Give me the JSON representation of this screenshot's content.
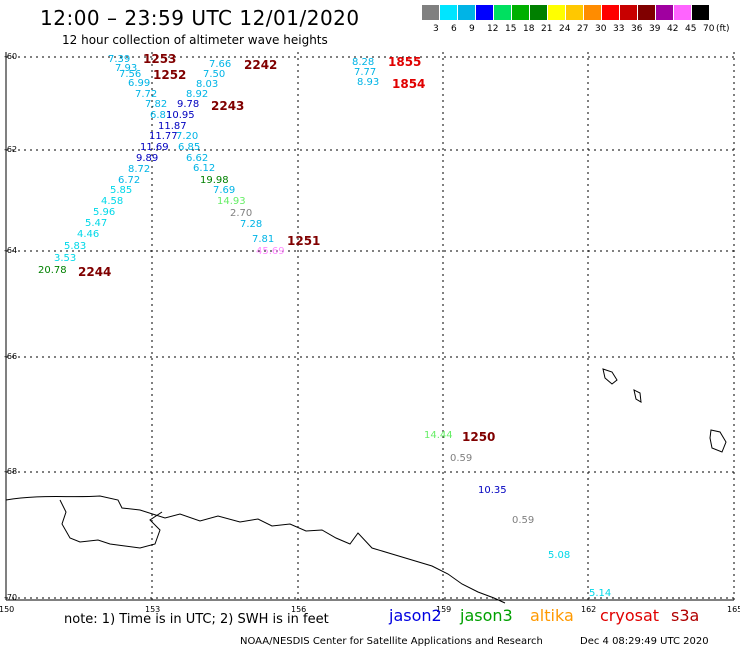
{
  "title": "12:00 – 23:59 UTC 12/01/2020",
  "subtitle": "12 hour collection of altimeter wave heights",
  "legend": {
    "labels": [
      "3",
      "6",
      "9",
      "12",
      "15",
      "18",
      "21",
      "24",
      "27",
      "30",
      "33",
      "36",
      "39",
      "42",
      "45",
      "70"
    ],
    "colors": [
      "#808080",
      "#00e5ff",
      "#00b4e6",
      "#0000ff",
      "#00e060",
      "#00b000",
      "#008000",
      "#ffff00",
      "#ffc800",
      "#ff8c00",
      "#ff0000",
      "#c80000",
      "#800000",
      "#a000a0",
      "#ff64ff",
      "#000000"
    ],
    "unit": "(ft)"
  },
  "axes": {
    "lat_labels": [
      "-60",
      "-62",
      "-64",
      "-66",
      "-68",
      "-70"
    ],
    "lon_labels": [
      "150",
      "153",
      "156",
      "159",
      "162",
      "165"
    ]
  },
  "passes": [
    {
      "time": "1253",
      "satellite": "cryosat",
      "color": "#800000"
    },
    {
      "time": "1252",
      "satellite": "cryosat",
      "color": "#800000"
    },
    {
      "time": "2242",
      "satellite": "cryosat",
      "color": "#800000"
    },
    {
      "time": "2243",
      "satellite": "cryosat",
      "color": "#800000"
    },
    {
      "time": "1251",
      "satellite": "cryosat",
      "color": "#800000"
    },
    {
      "time": "2244",
      "satellite": "cryosat",
      "color": "#800000"
    },
    {
      "time": "1855",
      "satellite": "s3a",
      "color": "#e00000"
    },
    {
      "time": "1854",
      "satellite": "s3a",
      "color": "#e00000"
    },
    {
      "time": "1250",
      "satellite": "cryosat",
      "color": "#800000"
    }
  ],
  "wave_heights": [
    {
      "value": "7.39",
      "color": "#00b4e6"
    },
    {
      "value": "7.93",
      "color": "#00b4e6"
    },
    {
      "value": "7.56",
      "color": "#00b4e6"
    },
    {
      "value": "6.99",
      "color": "#00b4e6"
    },
    {
      "value": "7.72",
      "color": "#00b4e6"
    },
    {
      "value": "7.82",
      "color": "#00b4e6"
    },
    {
      "value": "6.81",
      "color": "#00b4e6"
    },
    {
      "value": "10.95",
      "color": "#0000c0"
    },
    {
      "value": "11.87",
      "color": "#0000c0"
    },
    {
      "value": "11.77",
      "color": "#0000c0"
    },
    {
      "value": "11.69",
      "color": "#0000c0"
    },
    {
      "value": "9.89",
      "color": "#0000c0"
    },
    {
      "value": "8.72",
      "color": "#00b4e6"
    },
    {
      "value": "6.72",
      "color": "#00b4e6"
    },
    {
      "value": "5.85",
      "color": "#00d8e8"
    },
    {
      "value": "4.58",
      "color": "#00d8e8"
    },
    {
      "value": "5.96",
      "color": "#00d8e8"
    },
    {
      "value": "5.47",
      "color": "#00d8e8"
    },
    {
      "value": "4.46",
      "color": "#00d8e8"
    },
    {
      "value": "5.83",
      "color": "#00d8e8"
    },
    {
      "value": "3.53",
      "color": "#00d8e8"
    },
    {
      "value": "20.78",
      "color": "#008000"
    },
    {
      "value": "7.66",
      "color": "#00b4e6"
    },
    {
      "value": "7.50",
      "color": "#00b4e6"
    },
    {
      "value": "8.03",
      "color": "#00b4e6"
    },
    {
      "value": "8.92",
      "color": "#00b4e6"
    },
    {
      "value": "9.78",
      "color": "#0000c0"
    },
    {
      "value": "7.20",
      "color": "#00b4e6"
    },
    {
      "value": "6.85",
      "color": "#00b4e6"
    },
    {
      "value": "6.62",
      "color": "#00b4e6"
    },
    {
      "value": "6.12",
      "color": "#00b4e6"
    },
    {
      "value": "19.98",
      "color": "#008000"
    },
    {
      "value": "7.69",
      "color": "#00b4e6"
    },
    {
      "value": "14.93",
      "color": "#66ee66"
    },
    {
      "value": "2.70",
      "color": "#808080"
    },
    {
      "value": "7.28",
      "color": "#00b4e6"
    },
    {
      "value": "7.81",
      "color": "#00b4e6"
    },
    {
      "value": "45.69",
      "color": "#ff88ff"
    },
    {
      "value": "8.28",
      "color": "#00b4e6"
    },
    {
      "value": "7.77",
      "color": "#00b4e6"
    },
    {
      "value": "8.93",
      "color": "#00b4e6"
    },
    {
      "value": "14.44",
      "color": "#66ee66"
    },
    {
      "value": "0.59",
      "color": "#808080"
    },
    {
      "value": "10.35",
      "color": "#0000c0"
    },
    {
      "value": "0.59",
      "color": "#808080"
    },
    {
      "value": "5.08",
      "color": "#00d8e8"
    },
    {
      "value": "5.14",
      "color": "#00d8e8"
    }
  ],
  "note": "note:  1) Time is in UTC;  2) SWH is in feet",
  "satellites": [
    {
      "name": "jason2",
      "color": "#0000e0"
    },
    {
      "name": "jason3",
      "color": "#00a000"
    },
    {
      "name": "altika",
      "color": "#ff9900"
    },
    {
      "name": "cryosat",
      "color": "#e00000"
    },
    {
      "name": "s3a",
      "color": "#b00000"
    }
  ],
  "credit": {
    "org": "NOAA/NESDIS Center for Satellite Applications and Research",
    "time": "Dec  4 08:29:49 UTC 2020"
  }
}
